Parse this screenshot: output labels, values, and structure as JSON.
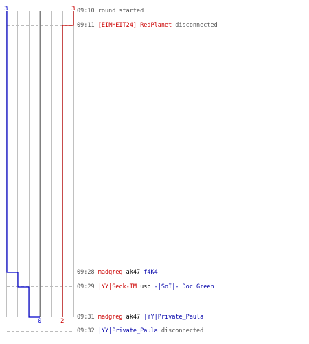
{
  "scores": {
    "left_top": "3",
    "right_top": "3",
    "left_bottom": "0",
    "right_bottom": "2"
  },
  "colors": {
    "red_team": "#cc0000",
    "blue_team": "#0000cc",
    "grid": "#c0c0c0",
    "center": "#808080",
    "dash": "#bbbbbb"
  },
  "events": [
    {
      "time": "09:10",
      "parts": [
        {
          "text": "round started",
          "style": "grey"
        }
      ]
    },
    {
      "time": "09:11",
      "parts": [
        {
          "text": "[EINHEIT24] RedPlanet",
          "style": "team-red"
        },
        {
          "text": " disconnected",
          "style": "grey"
        }
      ]
    },
    {
      "time": "09:28",
      "parts": [
        {
          "text": "madgreg",
          "style": "team-red"
        },
        {
          "text": " ak47 ",
          "style": "neutral"
        },
        {
          "text": "f4K4",
          "style": "team-blue"
        }
      ]
    },
    {
      "time": "09:29",
      "parts": [
        {
          "text": "|YY|Seck-TM",
          "style": "team-red"
        },
        {
          "text": " usp ",
          "style": "neutral"
        },
        {
          "text": "-|SoI|- Doc Green",
          "style": "team-blue"
        }
      ]
    },
    {
      "time": "09:31",
      "parts": [
        {
          "text": "madgreg",
          "style": "team-red"
        },
        {
          "text": " ak47 ",
          "style": "neutral"
        },
        {
          "text": "|YY|Private_Paula",
          "style": "team-blue"
        }
      ]
    },
    {
      "time": "09:32",
      "parts": [
        {
          "text": "|YY|Private_Paula",
          "style": "team-blue"
        },
        {
          "text": " disconnected",
          "style": "grey"
        }
      ]
    }
  ]
}
